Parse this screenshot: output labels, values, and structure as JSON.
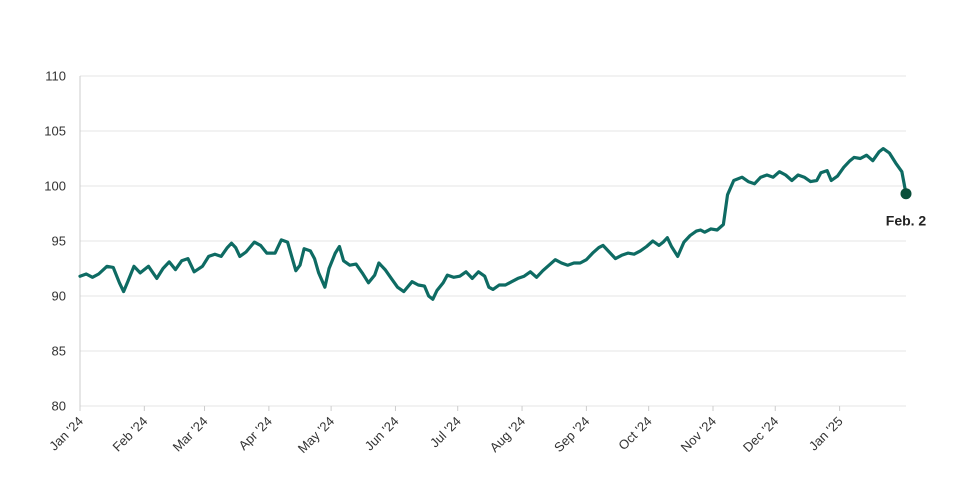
{
  "chart_data": {
    "type": "line",
    "title": "",
    "xlabel": "",
    "ylabel": "",
    "ylim": [
      80,
      110
    ],
    "y_ticks": [
      "80",
      "85",
      "90",
      "95",
      "100",
      "105",
      "110"
    ],
    "x_range": [
      "2024-01-01",
      "2025-02-02"
    ],
    "x_ticks": [
      {
        "date": "2024-01-01",
        "label": "Jan '24"
      },
      {
        "date": "2024-02-01",
        "label": "Feb '24"
      },
      {
        "date": "2024-03-01",
        "label": "Mar '24"
      },
      {
        "date": "2024-04-01",
        "label": "Apr '24"
      },
      {
        "date": "2024-05-01",
        "label": "May '24"
      },
      {
        "date": "2024-06-01",
        "label": "Jun '24"
      },
      {
        "date": "2024-07-01",
        "label": "Jul '24"
      },
      {
        "date": "2024-08-01",
        "label": "Aug '24"
      },
      {
        "date": "2024-09-01",
        "label": "Sep '24"
      },
      {
        "date": "2024-10-01",
        "label": "Oct '24"
      },
      {
        "date": "2024-11-01",
        "label": "Nov '24"
      },
      {
        "date": "2024-12-01",
        "label": "Dec '24"
      },
      {
        "date": "2025-01-01",
        "label": "Jan '25"
      }
    ],
    "grid": true,
    "colors": {
      "line": "#0e6b63",
      "marker": "#0a4f3a",
      "grid": "#e6e6e6",
      "axis": "#cccccc"
    },
    "end_label": "Feb. 2",
    "series": [
      {
        "color": "#0e6b63",
        "points": [
          [
            "2024-01-01",
            91.8
          ],
          [
            "2024-01-04",
            92.0
          ],
          [
            "2024-01-07",
            91.7
          ],
          [
            "2024-01-10",
            92.0
          ],
          [
            "2024-01-14",
            92.7
          ],
          [
            "2024-01-17",
            92.6
          ],
          [
            "2024-01-20",
            91.2
          ],
          [
            "2024-01-22",
            90.4
          ],
          [
            "2024-01-24",
            91.3
          ],
          [
            "2024-01-27",
            92.7
          ],
          [
            "2024-01-30",
            92.1
          ],
          [
            "2024-02-03",
            92.7
          ],
          [
            "2024-02-07",
            91.6
          ],
          [
            "2024-02-10",
            92.5
          ],
          [
            "2024-02-13",
            93.1
          ],
          [
            "2024-02-16",
            92.4
          ],
          [
            "2024-02-19",
            93.2
          ],
          [
            "2024-02-22",
            93.4
          ],
          [
            "2024-02-25",
            92.2
          ],
          [
            "2024-02-29",
            92.7
          ],
          [
            "2024-03-03",
            93.6
          ],
          [
            "2024-03-06",
            93.8
          ],
          [
            "2024-03-09",
            93.6
          ],
          [
            "2024-03-12",
            94.4
          ],
          [
            "2024-03-14",
            94.8
          ],
          [
            "2024-03-16",
            94.4
          ],
          [
            "2024-03-18",
            93.6
          ],
          [
            "2024-03-21",
            94.0
          ],
          [
            "2024-03-25",
            94.9
          ],
          [
            "2024-03-28",
            94.6
          ],
          [
            "2024-03-31",
            93.9
          ],
          [
            "2024-04-04",
            93.9
          ],
          [
            "2024-04-07",
            95.1
          ],
          [
            "2024-04-10",
            94.9
          ],
          [
            "2024-04-12",
            93.6
          ],
          [
            "2024-04-14",
            92.3
          ],
          [
            "2024-04-16",
            92.8
          ],
          [
            "2024-04-18",
            94.3
          ],
          [
            "2024-04-21",
            94.1
          ],
          [
            "2024-04-23",
            93.4
          ],
          [
            "2024-04-25",
            92.1
          ],
          [
            "2024-04-28",
            90.8
          ],
          [
            "2024-04-30",
            92.5
          ],
          [
            "2024-05-03",
            93.9
          ],
          [
            "2024-05-05",
            94.5
          ],
          [
            "2024-05-07",
            93.2
          ],
          [
            "2024-05-10",
            92.8
          ],
          [
            "2024-05-13",
            92.9
          ],
          [
            "2024-05-16",
            92.1
          ],
          [
            "2024-05-19",
            91.2
          ],
          [
            "2024-05-22",
            91.9
          ],
          [
            "2024-05-24",
            93.0
          ],
          [
            "2024-05-27",
            92.4
          ],
          [
            "2024-05-30",
            91.6
          ],
          [
            "2024-06-02",
            90.8
          ],
          [
            "2024-06-05",
            90.4
          ],
          [
            "2024-06-09",
            91.3
          ],
          [
            "2024-06-12",
            91.0
          ],
          [
            "2024-06-15",
            90.9
          ],
          [
            "2024-06-17",
            90.0
          ],
          [
            "2024-06-19",
            89.7
          ],
          [
            "2024-06-21",
            90.5
          ],
          [
            "2024-06-24",
            91.2
          ],
          [
            "2024-06-26",
            91.9
          ],
          [
            "2024-06-29",
            91.7
          ],
          [
            "2024-07-02",
            91.8
          ],
          [
            "2024-07-05",
            92.2
          ],
          [
            "2024-07-08",
            91.6
          ],
          [
            "2024-07-11",
            92.2
          ],
          [
            "2024-07-14",
            91.8
          ],
          [
            "2024-07-16",
            90.8
          ],
          [
            "2024-07-18",
            90.6
          ],
          [
            "2024-07-21",
            91.0
          ],
          [
            "2024-07-24",
            91.0
          ],
          [
            "2024-07-27",
            91.3
          ],
          [
            "2024-07-30",
            91.6
          ],
          [
            "2024-08-02",
            91.8
          ],
          [
            "2024-08-05",
            92.2
          ],
          [
            "2024-08-08",
            91.7
          ],
          [
            "2024-08-11",
            92.3
          ],
          [
            "2024-08-14",
            92.8
          ],
          [
            "2024-08-17",
            93.3
          ],
          [
            "2024-08-20",
            93.0
          ],
          [
            "2024-08-23",
            92.8
          ],
          [
            "2024-08-26",
            93.0
          ],
          [
            "2024-08-29",
            93.0
          ],
          [
            "2024-09-01",
            93.3
          ],
          [
            "2024-09-04",
            93.9
          ],
          [
            "2024-09-07",
            94.4
          ],
          [
            "2024-09-09",
            94.6
          ],
          [
            "2024-09-12",
            94.0
          ],
          [
            "2024-09-15",
            93.4
          ],
          [
            "2024-09-18",
            93.7
          ],
          [
            "2024-09-21",
            93.9
          ],
          [
            "2024-09-24",
            93.8
          ],
          [
            "2024-09-27",
            94.1
          ],
          [
            "2024-09-30",
            94.5
          ],
          [
            "2024-10-03",
            95.0
          ],
          [
            "2024-10-06",
            94.6
          ],
          [
            "2024-10-08",
            94.9
          ],
          [
            "2024-10-10",
            95.3
          ],
          [
            "2024-10-12",
            94.5
          ],
          [
            "2024-10-15",
            93.6
          ],
          [
            "2024-10-18",
            94.9
          ],
          [
            "2024-10-21",
            95.5
          ],
          [
            "2024-10-24",
            95.9
          ],
          [
            "2024-10-26",
            96.0
          ],
          [
            "2024-10-28",
            95.8
          ],
          [
            "2024-10-31",
            96.1
          ],
          [
            "2024-11-03",
            96.0
          ],
          [
            "2024-11-06",
            96.5
          ],
          [
            "2024-11-08",
            99.2
          ],
          [
            "2024-11-11",
            100.5
          ],
          [
            "2024-11-15",
            100.8
          ],
          [
            "2024-11-18",
            100.4
          ],
          [
            "2024-11-21",
            100.2
          ],
          [
            "2024-11-24",
            100.8
          ],
          [
            "2024-11-27",
            101.0
          ],
          [
            "2024-11-30",
            100.8
          ],
          [
            "2024-12-03",
            101.3
          ],
          [
            "2024-12-06",
            101.0
          ],
          [
            "2024-12-09",
            100.5
          ],
          [
            "2024-12-12",
            101.0
          ],
          [
            "2024-12-15",
            100.8
          ],
          [
            "2024-12-18",
            100.4
          ],
          [
            "2024-12-21",
            100.5
          ],
          [
            "2024-12-23",
            101.2
          ],
          [
            "2024-12-26",
            101.4
          ],
          [
            "2024-12-28",
            100.5
          ],
          [
            "2024-12-31",
            100.9
          ],
          [
            "2025-01-03",
            101.7
          ],
          [
            "2025-01-06",
            102.3
          ],
          [
            "2025-01-08",
            102.6
          ],
          [
            "2025-01-11",
            102.5
          ],
          [
            "2025-01-14",
            102.8
          ],
          [
            "2025-01-17",
            102.3
          ],
          [
            "2025-01-20",
            103.1
          ],
          [
            "2025-01-22",
            103.4
          ],
          [
            "2025-01-25",
            103.0
          ],
          [
            "2025-01-28",
            102.1
          ],
          [
            "2025-01-31",
            101.3
          ],
          [
            "2025-02-02",
            99.3
          ]
        ]
      }
    ]
  }
}
